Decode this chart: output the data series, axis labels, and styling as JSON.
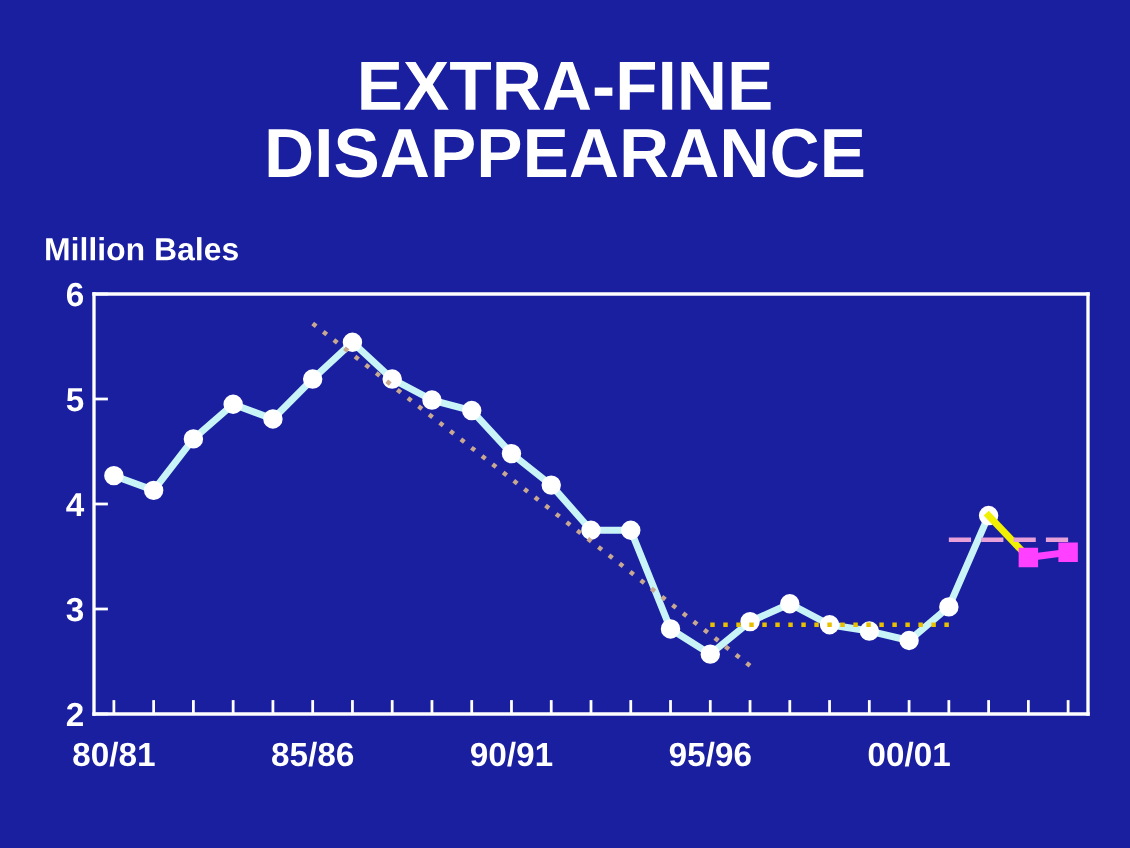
{
  "chart_data": {
    "type": "line",
    "title": "EXTRA-FINE\nDISAPPEARANCE",
    "ylabel": "Million Bales",
    "categories": [
      "80/81",
      null,
      null,
      null,
      null,
      "85/86",
      null,
      null,
      null,
      null,
      "90/91",
      null,
      null,
      null,
      null,
      "95/96",
      null,
      null,
      null,
      null,
      "00/01",
      null,
      null,
      null,
      null
    ],
    "series": [
      {
        "color": "#c8f4f8",
        "marker": "circle",
        "line_style": "solid",
        "values": [
          4.27,
          4.13,
          4.62,
          4.95,
          4.81,
          5.19,
          5.54,
          5.19,
          4.99,
          4.89,
          4.48,
          4.18,
          3.75,
          3.75,
          2.81,
          2.57,
          2.88,
          3.05,
          2.85,
          2.79,
          2.7,
          3.02,
          3.89,
          null,
          null
        ]
      },
      {
        "color": "#f0f000",
        "marker": "none",
        "line_style": "solid",
        "values": [
          null,
          null,
          null,
          null,
          null,
          null,
          null,
          null,
          null,
          null,
          null,
          null,
          null,
          null,
          null,
          null,
          null,
          null,
          null,
          null,
          null,
          null,
          3.89,
          3.49,
          null
        ]
      },
      {
        "color": "#ff40ff",
        "marker": "square",
        "line_style": "solid",
        "values": [
          null,
          null,
          null,
          null,
          null,
          null,
          null,
          null,
          null,
          null,
          null,
          null,
          null,
          null,
          null,
          null,
          null,
          null,
          null,
          null,
          null,
          null,
          null,
          3.49,
          3.54
        ]
      },
      {
        "color": "#c8a890",
        "marker": "none",
        "line_style": "dotted",
        "values": [
          null,
          null,
          null,
          null,
          null,
          5.72,
          null,
          null,
          null,
          null,
          null,
          null,
          null,
          null,
          null,
          null,
          2.46,
          null,
          null,
          null,
          null,
          null,
          null,
          null,
          null
        ]
      },
      {
        "color": "#e8c000",
        "marker": "none",
        "line_style": "dotted",
        "values": [
          null,
          null,
          null,
          null,
          null,
          null,
          null,
          null,
          null,
          null,
          null,
          null,
          null,
          null,
          null,
          2.85,
          null,
          null,
          null,
          null,
          null,
          2.85,
          null,
          null,
          null
        ]
      },
      {
        "color": "#e8a0d8",
        "marker": "none",
        "line_style": "dashed",
        "values": [
          null,
          null,
          null,
          null,
          null,
          null,
          null,
          null,
          null,
          null,
          null,
          null,
          null,
          null,
          null,
          null,
          null,
          null,
          null,
          null,
          null,
          3.66,
          null,
          null,
          3.66
        ]
      }
    ],
    "ylim": [
      2,
      6
    ],
    "yticks": [
      2,
      3,
      4,
      5,
      6
    ],
    "grid": false,
    "legend": false
  }
}
